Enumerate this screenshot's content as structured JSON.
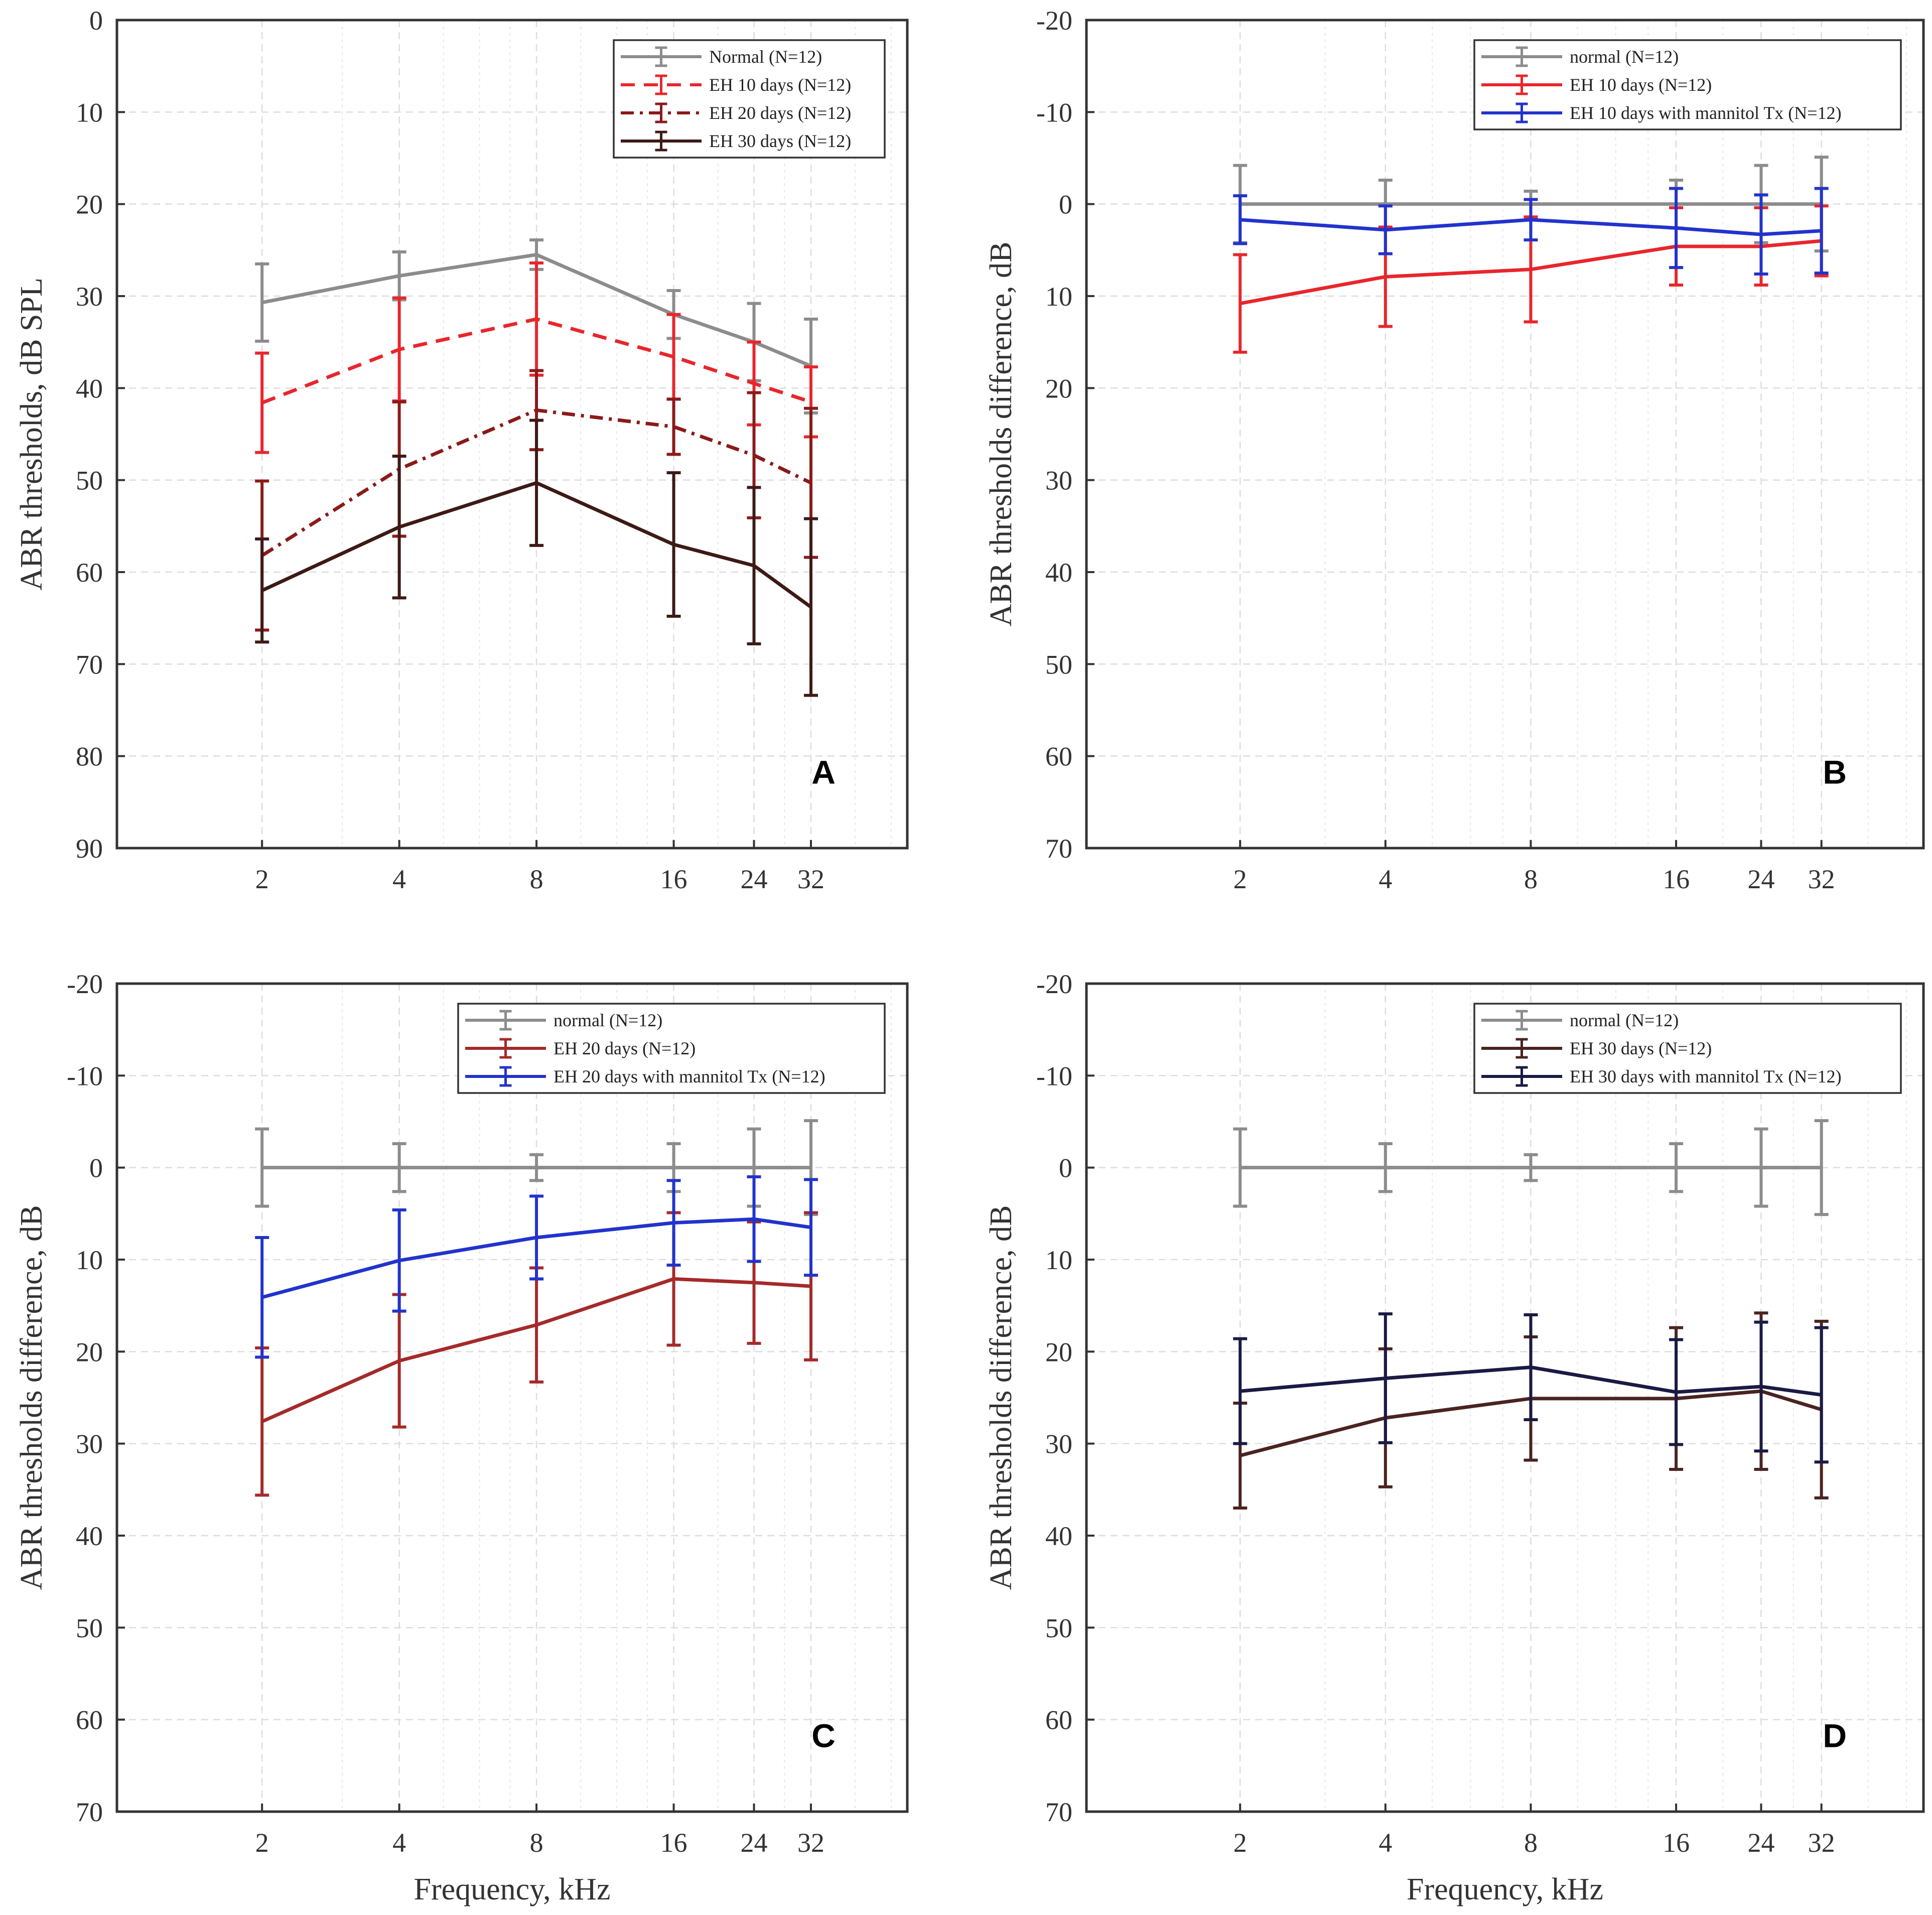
{
  "chart_data": [
    {
      "type": "line",
      "panel_letter": "A",
      "xlabel": "",
      "ylabel": "ABR thresholds, dB SPL",
      "x": [
        2,
        4,
        8,
        16,
        24,
        32
      ],
      "x_tick_labels": [
        "2",
        "4",
        "8",
        "16",
        "24",
        "32"
      ],
      "ylim": [
        0,
        90
      ],
      "y_inverted": true,
      "y_ticks": [
        0,
        10,
        20,
        30,
        40,
        50,
        60,
        70,
        80,
        90
      ],
      "y_tick_labels": [
        "0",
        "10",
        "20",
        "30",
        "40",
        "50",
        "60",
        "70",
        "80",
        "90"
      ],
      "legend_position": "top-right",
      "grid": true,
      "series": [
        {
          "name": "Normal (N=12)",
          "color": "#8c8c8c",
          "dash": "solid",
          "values": [
            30.7,
            27.8,
            25.5,
            32.0,
            35.0,
            37.6
          ],
          "errors": [
            4.2,
            2.6,
            1.6,
            2.6,
            4.2,
            5.1
          ]
        },
        {
          "name": "EH 10 days (N=12)",
          "color": "#e8262c",
          "dash": "dashed",
          "values": [
            41.6,
            35.8,
            32.5,
            36.6,
            39.5,
            41.5
          ],
          "errors": [
            5.4,
            5.6,
            6.1,
            4.6,
            4.5,
            3.8
          ]
        },
        {
          "name": "EH 20 days (N=12)",
          "color": "#8b1a1a",
          "dash": "dashdot",
          "values": [
            58.2,
            48.8,
            42.4,
            44.2,
            47.3,
            50.3
          ],
          "errors": [
            8.1,
            7.3,
            4.3,
            3.0,
            6.8,
            8.1
          ]
        },
        {
          "name": "EH 30 days (N=12)",
          "color": "#3d1a16",
          "dash": "solid",
          "values": [
            62.0,
            55.1,
            50.3,
            57.0,
            59.3,
            63.8
          ],
          "errors": [
            5.6,
            7.7,
            6.8,
            7.8,
            8.5,
            9.6
          ]
        }
      ]
    },
    {
      "type": "line",
      "panel_letter": "B",
      "xlabel": "",
      "ylabel": "ABR thresholds difference, dB",
      "x": [
        2,
        4,
        8,
        16,
        24,
        32
      ],
      "x_tick_labels": [
        "2",
        "4",
        "8",
        "16",
        "24",
        "32"
      ],
      "ylim": [
        -20,
        70
      ],
      "y_inverted": true,
      "y_ticks": [
        -20,
        -10,
        0,
        10,
        20,
        30,
        40,
        50,
        60,
        70
      ],
      "y_tick_labels": [
        "-20",
        "-10",
        "0",
        "10",
        "20",
        "30",
        "40",
        "50",
        "60",
        "70"
      ],
      "legend_position": "top-right",
      "grid": true,
      "series": [
        {
          "name": "normal (N=12)",
          "color": "#8c8c8c",
          "dash": "solid",
          "values": [
            0,
            0,
            0,
            0,
            0,
            0
          ],
          "errors": [
            4.2,
            2.6,
            1.4,
            2.6,
            4.2,
            5.1
          ]
        },
        {
          "name": "EH 10 days (N=12)",
          "color": "#e8262c",
          "dash": "solid",
          "values": [
            10.8,
            7.9,
            7.1,
            4.6,
            4.6,
            4.0
          ],
          "errors": [
            5.3,
            5.4,
            5.7,
            4.2,
            4.2,
            3.8
          ]
        },
        {
          "name": "EH 10 days with mannitol Tx (N=12)",
          "color": "#2233cc",
          "dash": "solid",
          "values": [
            1.7,
            2.8,
            1.7,
            2.6,
            3.3,
            2.9
          ],
          "errors": [
            2.6,
            2.6,
            2.2,
            4.3,
            4.3,
            4.6
          ]
        }
      ]
    },
    {
      "type": "line",
      "panel_letter": "C",
      "xlabel": "Frequency, kHz",
      "ylabel": "ABR thresholds difference, dB",
      "x": [
        2,
        4,
        8,
        16,
        24,
        32
      ],
      "x_tick_labels": [
        "2",
        "4",
        "8",
        "16",
        "24",
        "32"
      ],
      "ylim": [
        -20,
        70
      ],
      "y_inverted": true,
      "y_ticks": [
        -20,
        -10,
        0,
        10,
        20,
        30,
        40,
        50,
        60,
        70
      ],
      "y_tick_labels": [
        "-20",
        "-10",
        "0",
        "10",
        "20",
        "30",
        "40",
        "50",
        "60",
        "70"
      ],
      "legend_position": "top-right",
      "grid": true,
      "series": [
        {
          "name": "normal (N=12)",
          "color": "#8c8c8c",
          "dash": "solid",
          "values": [
            0,
            0,
            0,
            0,
            0,
            0
          ],
          "errors": [
            4.2,
            2.6,
            1.4,
            2.6,
            4.2,
            5.1
          ]
        },
        {
          "name": "EH 20 days (N=12)",
          "color": "#a52a2a",
          "dash": "solid",
          "values": [
            27.6,
            21.0,
            17.1,
            12.1,
            12.5,
            12.9
          ],
          "errors": [
            8.0,
            7.2,
            6.2,
            7.2,
            6.6,
            8.0
          ]
        },
        {
          "name": "EH 20 days with mannitol Tx (N=12)",
          "color": "#2233cc",
          "dash": "solid",
          "values": [
            14.1,
            10.1,
            7.6,
            6.0,
            5.6,
            6.5
          ],
          "errors": [
            6.5,
            5.5,
            4.5,
            4.6,
            4.6,
            5.2
          ]
        }
      ]
    },
    {
      "type": "line",
      "panel_letter": "D",
      "xlabel": "Frequency, kHz",
      "ylabel": "ABR thresholds difference, dB",
      "x": [
        2,
        4,
        8,
        16,
        24,
        32
      ],
      "x_tick_labels": [
        "2",
        "4",
        "8",
        "16",
        "24",
        "32"
      ],
      "ylim": [
        -20,
        70
      ],
      "y_inverted": true,
      "y_ticks": [
        -20,
        -10,
        0,
        10,
        20,
        30,
        40,
        50,
        60,
        70
      ],
      "y_tick_labels": [
        "-20",
        "-10",
        "0",
        "10",
        "20",
        "30",
        "40",
        "50",
        "60",
        "70"
      ],
      "legend_position": "top-right",
      "grid": true,
      "series": [
        {
          "name": "normal (N=12)",
          "color": "#8c8c8c",
          "dash": "solid",
          "values": [
            0,
            0,
            0,
            0,
            0,
            0
          ],
          "errors": [
            4.2,
            2.6,
            1.4,
            2.6,
            4.2,
            5.1
          ]
        },
        {
          "name": "EH 30 days (N=12)",
          "color": "#4a2320",
          "dash": "solid",
          "values": [
            31.3,
            27.2,
            25.1,
            25.1,
            24.3,
            26.3
          ],
          "errors": [
            5.7,
            7.5,
            6.7,
            7.7,
            8.5,
            9.6
          ]
        },
        {
          "name": "EH 30 days with mannitol Tx (N=12)",
          "color": "#1a1a44",
          "dash": "solid",
          "values": [
            24.3,
            22.9,
            21.7,
            24.4,
            23.8,
            24.7
          ],
          "errors": [
            5.7,
            7.0,
            5.7,
            5.7,
            7.0,
            7.3
          ]
        }
      ]
    }
  ]
}
